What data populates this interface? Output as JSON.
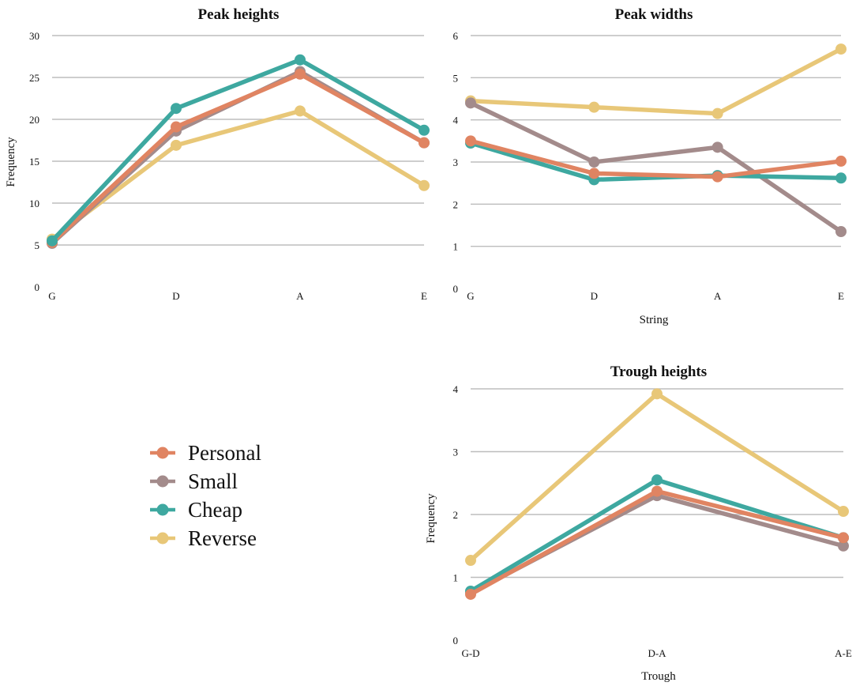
{
  "colors": {
    "personal": "#e08462",
    "small": "#a38b8b",
    "cheap": "#3ea8a0",
    "reverse": "#e8c778"
  },
  "legend": {
    "items": [
      {
        "label": "Personal",
        "color": "#e08462"
      },
      {
        "label": "Small",
        "color": "#a38b8b"
      },
      {
        "label": "Cheap",
        "color": "#3ea8a0"
      },
      {
        "label": "Reverse",
        "color": "#e8c778"
      }
    ]
  },
  "chart_data": [
    {
      "type": "line",
      "title": "Peak heights",
      "xlabel": "",
      "ylabel": "Frequency",
      "categories": [
        "G",
        "D",
        "A",
        "E"
      ],
      "ylim": [
        0,
        30
      ],
      "yticks": [
        0,
        5,
        10,
        15,
        20,
        25,
        30
      ],
      "grid": true,
      "series": [
        {
          "name": "Reverse",
          "color": "#e8c778",
          "values": [
            5.7,
            16.9,
            21.0,
            12.1
          ]
        },
        {
          "name": "Small",
          "color": "#a38b8b",
          "values": [
            5.2,
            18.6,
            25.7,
            17.2
          ]
        },
        {
          "name": "Personal",
          "color": "#e08462",
          "values": [
            5.3,
            19.1,
            25.4,
            17.2
          ]
        },
        {
          "name": "Cheap",
          "color": "#3ea8a0",
          "values": [
            5.5,
            21.3,
            27.1,
            18.7
          ]
        }
      ]
    },
    {
      "type": "line",
      "title": "Peak widths",
      "xlabel": "String",
      "ylabel": "",
      "categories": [
        "G",
        "D",
        "A",
        "E"
      ],
      "ylim": [
        0,
        6
      ],
      "yticks": [
        0,
        1,
        2,
        3,
        4,
        5,
        6
      ],
      "grid": true,
      "series": [
        {
          "name": "Reverse",
          "color": "#e8c778",
          "values": [
            4.45,
            4.3,
            4.15,
            5.68
          ]
        },
        {
          "name": "Small",
          "color": "#a38b8b",
          "values": [
            4.4,
            3.0,
            3.35,
            1.35
          ]
        },
        {
          "name": "Cheap",
          "color": "#3ea8a0",
          "values": [
            3.45,
            2.58,
            2.68,
            2.62
          ]
        },
        {
          "name": "Personal",
          "color": "#e08462",
          "values": [
            3.5,
            2.73,
            2.65,
            3.02
          ]
        }
      ]
    },
    {
      "type": "line",
      "title": "Trough heights",
      "xlabel": "Trough",
      "ylabel": "Frequency",
      "categories": [
        "G-D",
        "D-A",
        "A-E"
      ],
      "ylim": [
        0,
        4
      ],
      "yticks": [
        0,
        1,
        2,
        3,
        4
      ],
      "grid": true,
      "series": [
        {
          "name": "Reverse",
          "color": "#e8c778",
          "values": [
            1.27,
            3.92,
            2.05
          ]
        },
        {
          "name": "Small",
          "color": "#a38b8b",
          "values": [
            0.75,
            2.3,
            1.5
          ]
        },
        {
          "name": "Cheap",
          "color": "#3ea8a0",
          "values": [
            0.78,
            2.55,
            1.63
          ]
        },
        {
          "name": "Personal",
          "color": "#e08462",
          "values": [
            0.73,
            2.37,
            1.63
          ]
        }
      ]
    }
  ]
}
